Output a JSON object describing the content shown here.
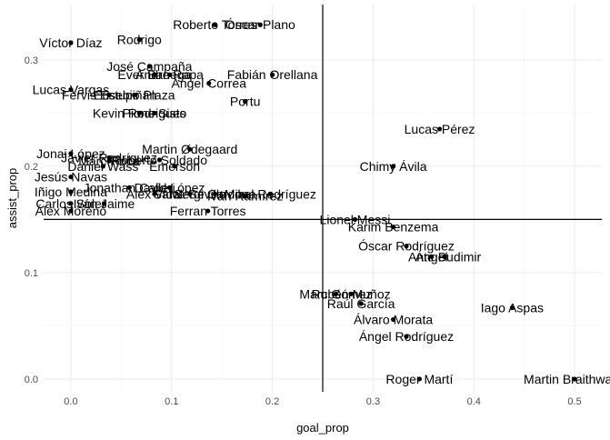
{
  "chart_data": {
    "type": "scatter",
    "xlabel": "goal_prop",
    "ylabel": "assist_prop",
    "xlim": [
      -0.027,
      0.527
    ],
    "ylim": [
      -0.012,
      0.352
    ],
    "x_ticks": [
      "0.0",
      "0.1",
      "0.2",
      "0.3",
      "0.4",
      "0.5"
    ],
    "y_ticks": [
      "0.0",
      "0.1",
      "0.2",
      "0.3"
    ],
    "x_tick_values": [
      0.0,
      0.1,
      0.2,
      0.3,
      0.4,
      0.5
    ],
    "y_tick_values": [
      0.0,
      0.1,
      0.2,
      0.3
    ],
    "reference_lines": {
      "vertical_x": 0.25,
      "horizontal_y": 0.15
    },
    "grid": true,
    "points": [
      {
        "name": "Roberto Torres",
        "x": 0.143,
        "y": 0.333
      },
      {
        "name": "Óscar Plano",
        "x": 0.188,
        "y": 0.333
      },
      {
        "name": "Víctor Díaz",
        "x": 0.0,
        "y": 0.316
      },
      {
        "name": "Rodrigo",
        "x": 0.068,
        "y": 0.319
      },
      {
        "name": "José Campaña",
        "x": 0.078,
        "y": 0.294
      },
      {
        "name": "Ever Banega",
        "x": 0.083,
        "y": 0.286
      },
      {
        "name": "Andre Rapa",
        "x": 0.098,
        "y": 0.286
      },
      {
        "name": "Fabián Orellana",
        "x": 0.2,
        "y": 0.286
      },
      {
        "name": "Ángel Correa",
        "x": 0.137,
        "y": 0.278
      },
      {
        "name": "Lucas Vargas",
        "x": 0.0,
        "y": 0.272
      },
      {
        "name": "Fervis Estupiñán",
        "x": 0.038,
        "y": 0.267
      },
      {
        "name": "Eusebio Plaza",
        "x": 0.063,
        "y": 0.267
      },
      {
        "name": "Portu",
        "x": 0.173,
        "y": 0.261
      },
      {
        "name": "Kevin Rodrigues",
        "x": 0.068,
        "y": 0.25
      },
      {
        "name": "Pione Sisto",
        "x": 0.083,
        "y": 0.25
      },
      {
        "name": "Lucas Pérez",
        "x": 0.366,
        "y": 0.235
      },
      {
        "name": "Martin Ødegaard",
        "x": 0.118,
        "y": 0.216
      },
      {
        "name": "Jonai López",
        "x": 0.0,
        "y": 0.212
      },
      {
        "name": "Javier Rodríguez",
        "x": 0.038,
        "y": 0.208
      },
      {
        "name": "Marc Roca",
        "x": 0.038,
        "y": 0.205
      },
      {
        "name": "Roberto Soldado",
        "x": 0.088,
        "y": 0.206
      },
      {
        "name": "Chimy Ávila",
        "x": 0.32,
        "y": 0.2
      },
      {
        "name": "Daniel Wass",
        "x": 0.032,
        "y": 0.2
      },
      {
        "name": "Emerson",
        "x": 0.103,
        "y": 0.2
      },
      {
        "name": "Jesús Navas",
        "x": 0.0,
        "y": 0.19
      },
      {
        "name": "Jonathan Calleri",
        "x": 0.058,
        "y": 0.18
      },
      {
        "name": "David López",
        "x": 0.098,
        "y": 0.18
      },
      {
        "name": "Álex Vidal",
        "x": 0.083,
        "y": 0.174
      },
      {
        "name": "Iñigo Medina",
        "x": 0.0,
        "y": 0.176
      },
      {
        "name": "Salva Sevilla",
        "x": 0.118,
        "y": 0.174
      },
      {
        "name": "Sergi Cardona",
        "x": 0.143,
        "y": 0.174
      },
      {
        "name": "Mikel Rodríguez",
        "x": 0.198,
        "y": 0.174
      },
      {
        "name": "Iván Ramírez",
        "x": 0.173,
        "y": 0.172
      },
      {
        "name": "Carlos Soler",
        "x": 0.0,
        "y": 0.165
      },
      {
        "name": "Iván Jaime",
        "x": 0.033,
        "y": 0.165
      },
      {
        "name": "Álex Moreno",
        "x": 0.0,
        "y": 0.158
      },
      {
        "name": "Ferran Torres",
        "x": 0.136,
        "y": 0.158
      },
      {
        "name": "Lionel Messi",
        "x": 0.282,
        "y": 0.15
      },
      {
        "name": "Karim Benzema",
        "x": 0.32,
        "y": 0.143
      },
      {
        "name": "Óscar Rodríguez",
        "x": 0.333,
        "y": 0.125
      },
      {
        "name": "Ante Budimir",
        "x": 0.371,
        "y": 0.115
      },
      {
        "name": "Ángel",
        "x": 0.358,
        "y": 0.115
      },
      {
        "name": "Marc Gómez",
        "x": 0.263,
        "y": 0.08
      },
      {
        "name": "Rubén Muñoz",
        "x": 0.278,
        "y": 0.08
      },
      {
        "name": "Raúl García",
        "x": 0.288,
        "y": 0.071
      },
      {
        "name": "Iago Aspas",
        "x": 0.438,
        "y": 0.067
      },
      {
        "name": "Álvaro Morata",
        "x": 0.32,
        "y": 0.056
      },
      {
        "name": "Ángel Rodríguez",
        "x": 0.333,
        "y": 0.04
      },
      {
        "name": "Roger Martí",
        "x": 0.346,
        "y": 0.0
      },
      {
        "name": "Martin Braithwaite",
        "x": 0.5,
        "y": 0.0
      }
    ]
  }
}
